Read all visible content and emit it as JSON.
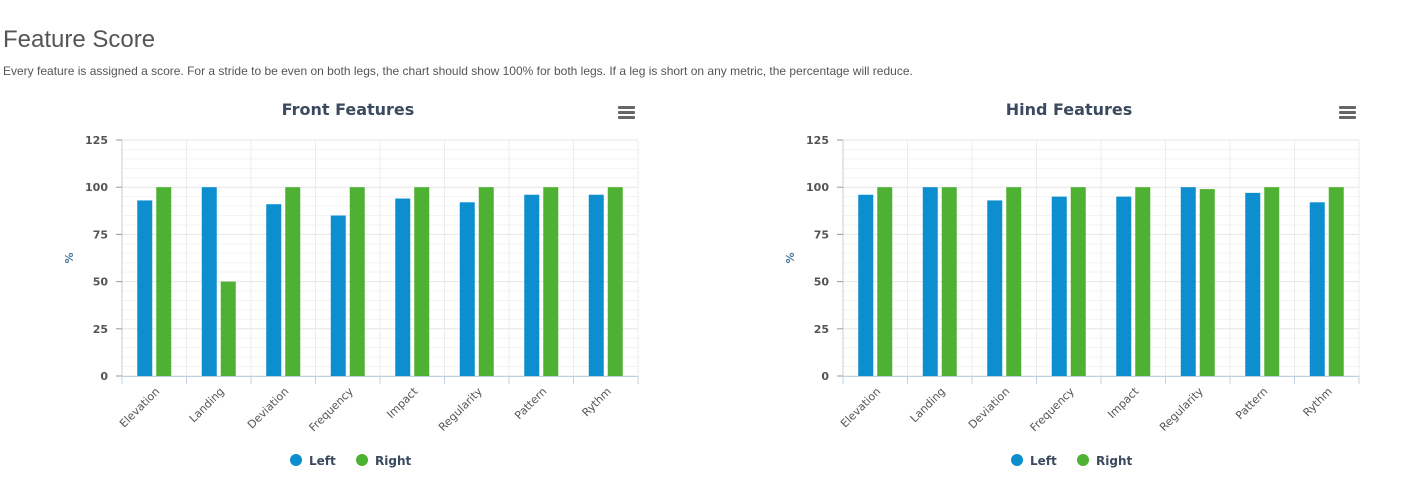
{
  "header": {
    "title": "Feature Score",
    "subtitle": "Every feature is assigned a score. For a stride to be even on both legs, the chart should show 100% for both legs. If a leg is short on any metric, the percentage will reduce."
  },
  "colors": {
    "left": "#0d8ecf",
    "right": "#4fb133"
  },
  "chart_data": [
    {
      "type": "bar",
      "title": "Front Features",
      "ylabel": "%",
      "xlabel": "",
      "ylim": [
        0,
        125
      ],
      "yticks": [
        0,
        25,
        50,
        75,
        100,
        125
      ],
      "grid": true,
      "legend_position": "bottom-center",
      "menu_icon": "hamburger-menu-icon",
      "categories": [
        "Elevation",
        "Landing",
        "Deviation",
        "Frequency",
        "Impact",
        "Regularity",
        "Pattern",
        "Rythm"
      ],
      "series": [
        {
          "name": "Left",
          "values": [
            93,
            100,
            91,
            85,
            94,
            92,
            96,
            96
          ]
        },
        {
          "name": "Right",
          "values": [
            100,
            50,
            100,
            100,
            100,
            100,
            100,
            100
          ]
        }
      ]
    },
    {
      "type": "bar",
      "title": "Hind Features",
      "ylabel": "%",
      "xlabel": "",
      "ylim": [
        0,
        125
      ],
      "yticks": [
        0,
        25,
        50,
        75,
        100,
        125
      ],
      "grid": true,
      "legend_position": "bottom-center",
      "menu_icon": "hamburger-menu-icon",
      "categories": [
        "Elevation",
        "Landing",
        "Deviation",
        "Frequency",
        "Impact",
        "Regularity",
        "Pattern",
        "Rythm"
      ],
      "series": [
        {
          "name": "Left",
          "values": [
            96,
            100,
            93,
            95,
            95,
            100,
            97,
            92
          ]
        },
        {
          "name": "Right",
          "values": [
            100,
            100,
            100,
            100,
            100,
            99,
            100,
            100
          ]
        }
      ]
    }
  ]
}
